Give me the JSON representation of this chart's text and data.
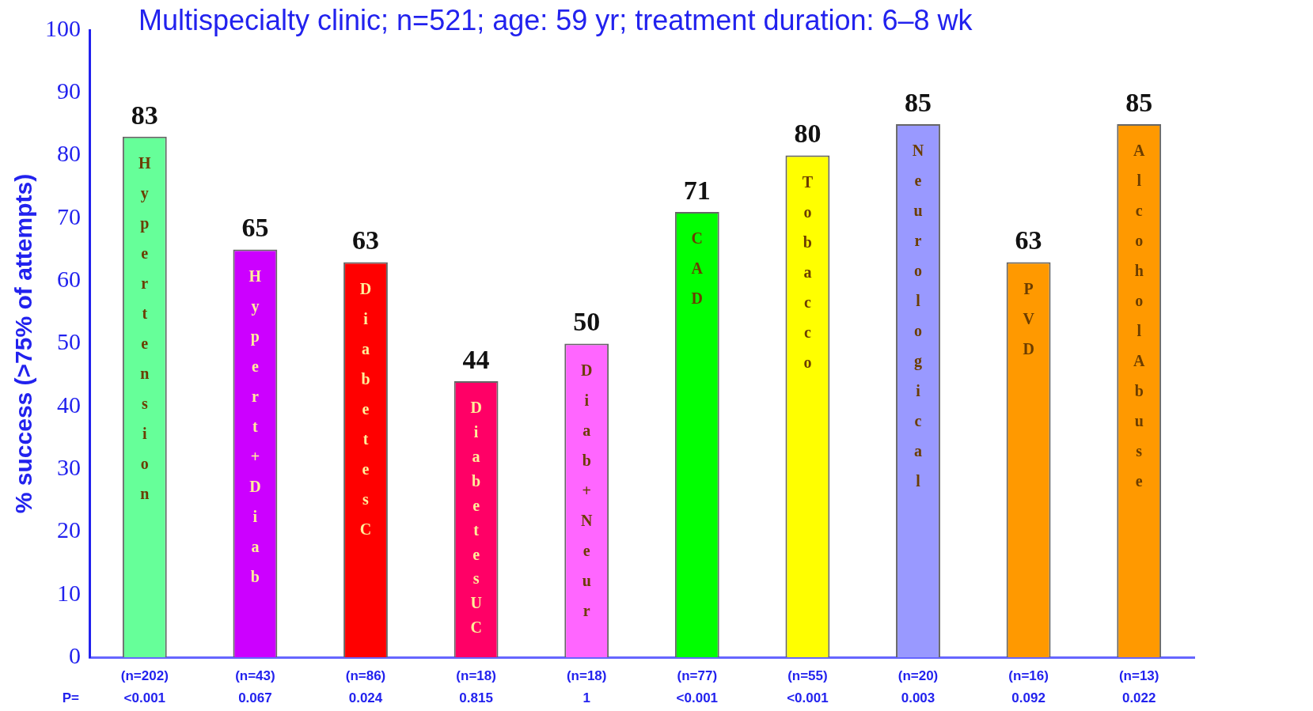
{
  "chart_data": {
    "type": "bar",
    "title": "Multispecialty clinic; n=521; age: 59 yr; treatment duration: 6–8 wk",
    "ylabel": "% success (>75% of attempts)",
    "categories": [
      "Hypertension",
      "Hypert+Diab",
      "DiabetesC",
      "DiabetesUC",
      "Diab+Neur",
      "CAD",
      "Tobacco",
      "Neurological",
      "PVD",
      "AlcoholAbuse"
    ],
    "values": [
      83,
      65,
      63,
      44,
      50,
      71,
      80,
      85,
      63,
      85
    ],
    "colors": [
      "#66ff99",
      "#cc00ff",
      "#ff0000",
      "#ff0066",
      "#ff66ff",
      "#00ff00",
      "#ffff00",
      "#9999ff",
      "#ff9900",
      "#ff9900"
    ],
    "ylim": [
      0,
      100
    ],
    "yticks": [
      0,
      10,
      20,
      30,
      40,
      50,
      60,
      70,
      80,
      90,
      100
    ],
    "grid": false,
    "legend": false,
    "data_labels": true,
    "annotations": [
      "(n=202)\n<0.001",
      "(n=43)\n0.067",
      "(n=86)\n0.024",
      "(n=18)\n0.815",
      "(n=18)\n1",
      "(n=77)\n<0.001",
      "(n=55)\n<0.001",
      "(n=20)\n0.003",
      "(n=16)\n0.092",
      "(n=13)\n0.022",
      "P="
    ]
  }
}
